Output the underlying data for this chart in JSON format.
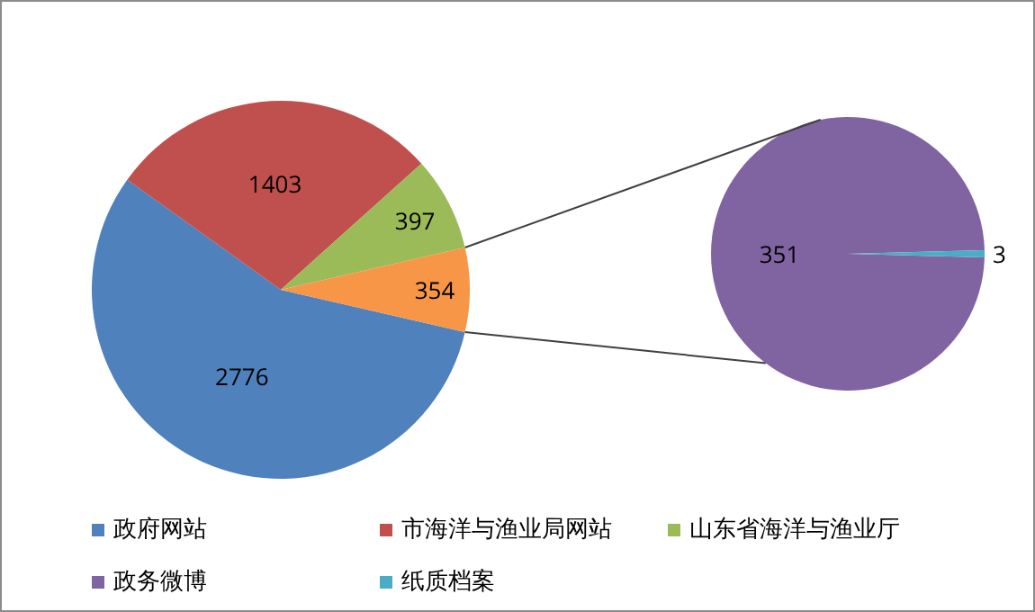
{
  "chart_data": [
    {
      "type": "pie",
      "categories": [
        "政府网站",
        "市海洋与渔业局网站",
        "山东省海洋与渔业厅",
        null
      ],
      "values": [
        2776,
        1403,
        397,
        354
      ],
      "colors": [
        "#4f81bd",
        "#c0504d",
        "#9bbb59",
        "#f79646"
      ],
      "data_labels": true,
      "legend": "bottom"
    },
    {
      "type": "pie",
      "categories": [
        "政务微博",
        "纸质档案"
      ],
      "values": [
        351,
        3
      ],
      "colors": [
        "#8064a2",
        "#4bacc6"
      ],
      "data_labels": true,
      "legend": "bottom"
    }
  ]
}
